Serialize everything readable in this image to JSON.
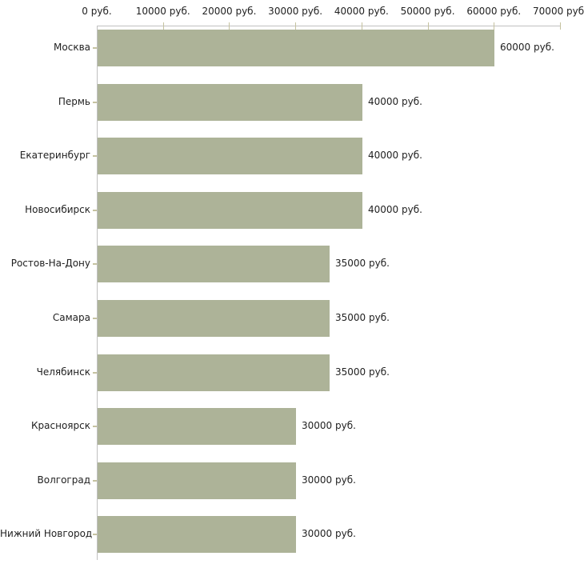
{
  "chart_data": {
    "type": "bar",
    "orientation": "horizontal",
    "title": "",
    "xlabel": "",
    "ylabel": "",
    "categories": [
      "Москва",
      "Пермь",
      "Екатеринбург",
      "Новосибирск",
      "Ростов-На-Дону",
      "Самара",
      "Челябинск",
      "Красноярск",
      "Волгоград",
      "Нижний Новгород"
    ],
    "values": [
      60000,
      40000,
      40000,
      40000,
      35000,
      35000,
      35000,
      30000,
      30000,
      30000
    ],
    "value_labels": [
      "60000 руб.",
      "40000 руб.",
      "40000 руб.",
      "40000 руб.",
      "35000 руб.",
      "35000 руб.",
      "35000 руб.",
      "30000 руб.",
      "30000 руб.",
      "30000 руб."
    ],
    "x_axis": {
      "position": "top",
      "min": 0,
      "max": 70000,
      "tick_step": 10000,
      "tick_labels": [
        "0 руб.",
        "10000 руб.",
        "20000 руб.",
        "30000 руб.",
        "40000 руб.",
        "50000 руб.",
        "60000 руб.",
        "70000 руб."
      ]
    },
    "grid": false,
    "legend": false,
    "colors": {
      "bar_fill": "#adb398",
      "axis_line": "#c0c0c0",
      "tick_mark": "#c5c2a0",
      "text": "#1f1f1f",
      "background": "#ffffff"
    }
  }
}
